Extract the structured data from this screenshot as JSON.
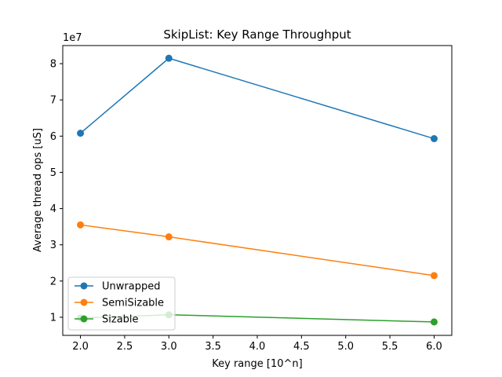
{
  "chart_data": {
    "type": "line",
    "title": "SkipList: Key Range Throughput",
    "xlabel": "Key range [10^n]",
    "ylabel": "Average thread ops [uS]",
    "y_offset_label": "1e7",
    "x": [
      2,
      3,
      6
    ],
    "xlim": [
      1.8,
      6.2
    ],
    "ylim": [
      0.5,
      8.5
    ],
    "xticks": [
      2.0,
      2.5,
      3.0,
      3.5,
      4.0,
      4.5,
      5.0,
      5.5,
      6.0
    ],
    "xtick_labels": [
      "2.0",
      "2.5",
      "3.0",
      "3.5",
      "4.0",
      "4.5",
      "5.0",
      "5.5",
      "6.0"
    ],
    "yticks": [
      1,
      2,
      3,
      4,
      5,
      6,
      7,
      8
    ],
    "ytick_labels": [
      "1",
      "2",
      "3",
      "4",
      "5",
      "6",
      "7",
      "8"
    ],
    "grid": false,
    "legend_position": "lower-left",
    "series": [
      {
        "name": "Unwrapped",
        "color": "#1f77b4",
        "values": [
          6.08,
          8.15,
          5.93
        ]
      },
      {
        "name": "SemiSizable",
        "color": "#ff7f0e",
        "values": [
          3.55,
          3.22,
          2.15
        ]
      },
      {
        "name": "Sizable",
        "color": "#2ca02c",
        "values": [
          0.98,
          1.07,
          0.87
        ]
      }
    ]
  }
}
